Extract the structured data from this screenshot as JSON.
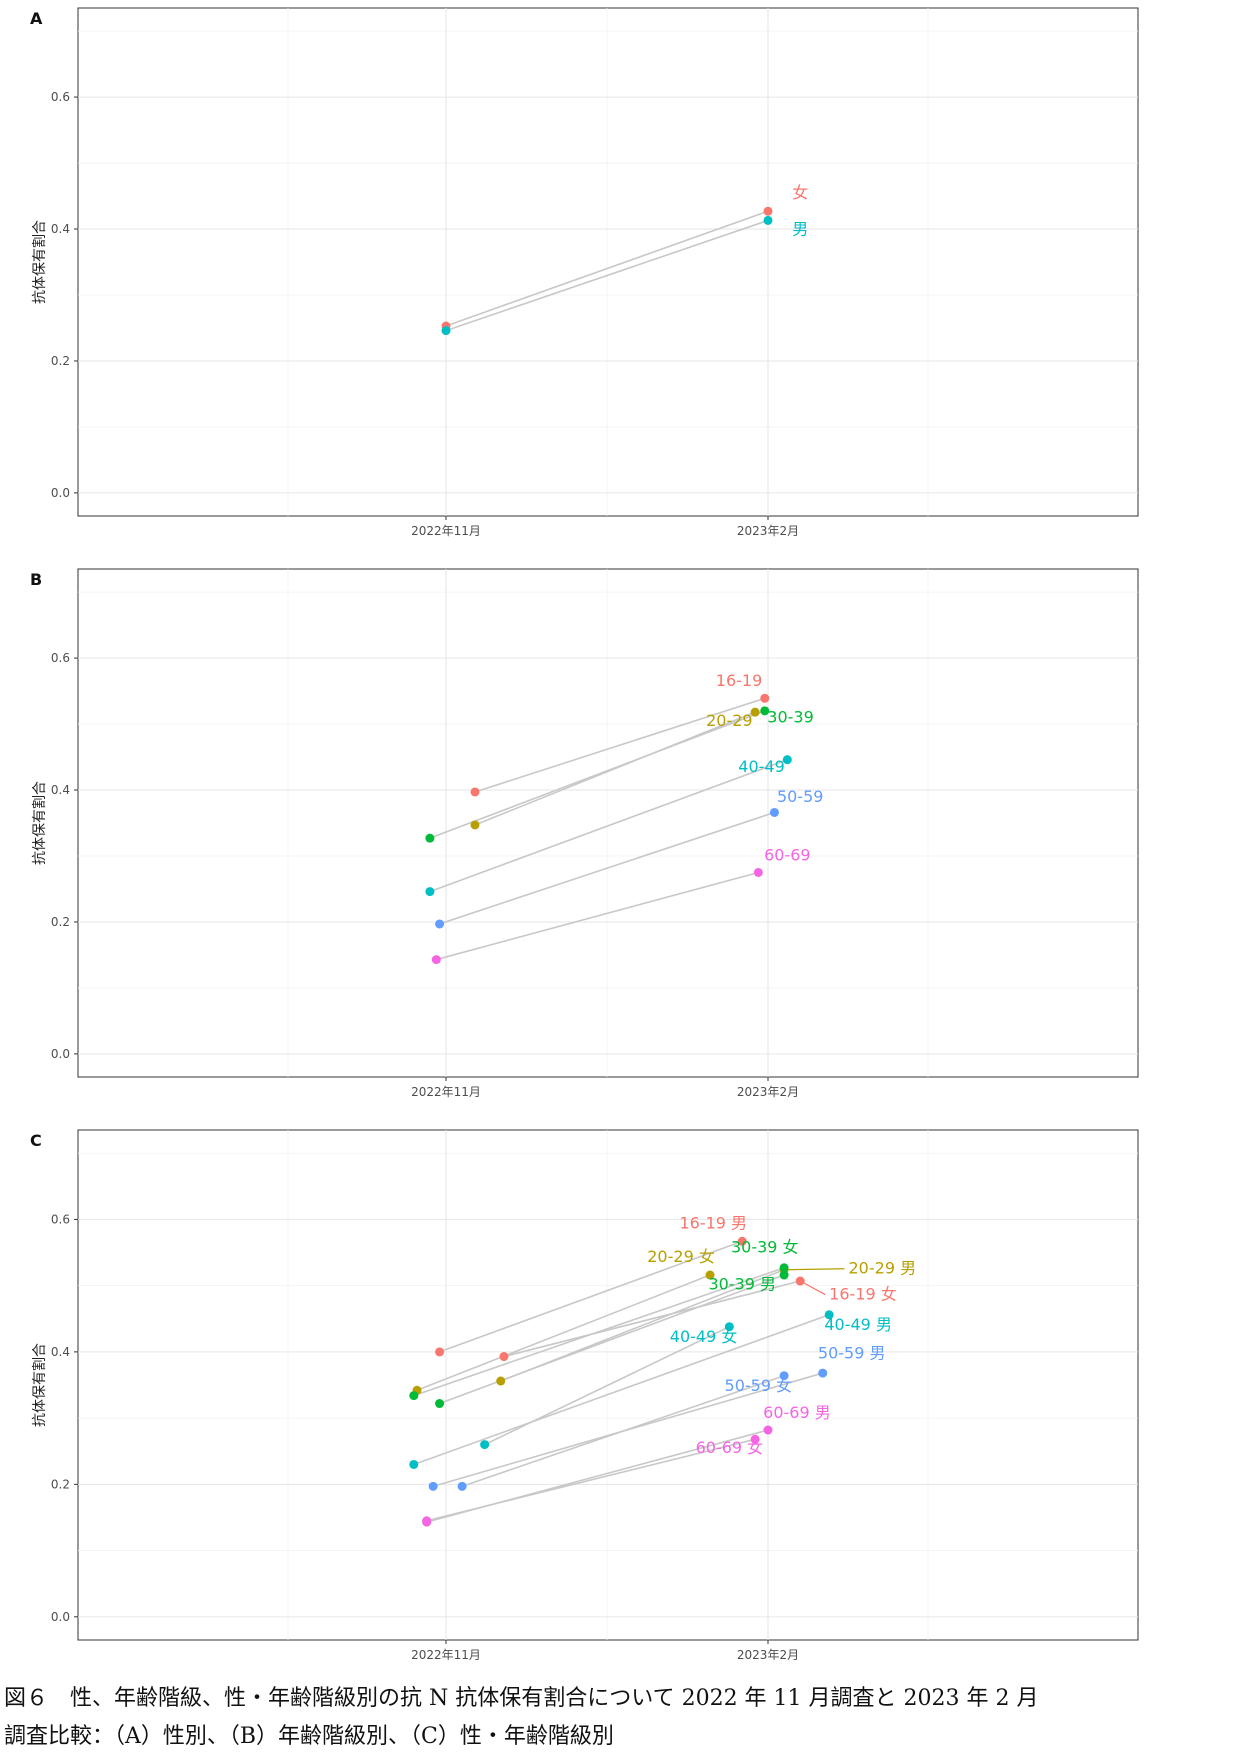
{
  "figure": {
    "caption_line1": "図６　性、年齢階級、性・年齢階級別の抗 N 抗体保有割合について 2022 年 11 月調査と 2023 年 2 月",
    "caption_line2": "調査比較：（A）性別、（B）年齢階級別、（C）性・年齢階級別"
  },
  "chart_data": [
    {
      "panel": "A",
      "type": "line",
      "title": "",
      "xlabel": "",
      "ylabel": "抗体保有割合",
      "x_categories": [
        "2022年11月",
        "2023年2月"
      ],
      "y_ticks": [
        "0.0",
        "0.2",
        "0.4",
        "0.6"
      ],
      "ylim": [
        -0.035,
        0.735
      ],
      "grid": true,
      "legend": "none (direct labels)",
      "series": [
        {
          "name": "女",
          "color": "#F8766D",
          "points": [
            [
              0,
              0.253
            ],
            [
              0,
              0.427
            ]
          ],
          "label_at": 1,
          "label_x": 0.1,
          "label_y": 0.447
        },
        {
          "name": "男",
          "color": "#00BFC4",
          "points": [
            [
              0,
              0.246
            ],
            [
              0,
              0.413
            ]
          ],
          "label_at": 1,
          "label_x": 0.1,
          "label_y": 0.392
        }
      ]
    },
    {
      "panel": "B",
      "type": "line",
      "title": "",
      "xlabel": "",
      "ylabel": "抗体保有割合",
      "x_categories": [
        "2022年11月",
        "2023年2月"
      ],
      "y_ticks": [
        "0.0",
        "0.2",
        "0.4",
        "0.6"
      ],
      "ylim": [
        -0.035,
        0.735
      ],
      "grid": true,
      "legend": "none (direct labels)",
      "series": [
        {
          "name": "16-19",
          "color": "#F8766D",
          "points": [
            [
              0.09,
              0.397
            ],
            [
              -0.01,
              0.539
            ]
          ],
          "label_x": -0.09,
          "label_y": 0.558
        },
        {
          "name": "20-29",
          "color": "#B79F00",
          "points": [
            [
              0.09,
              0.347
            ],
            [
              -0.04,
              0.518
            ]
          ],
          "label_x": -0.12,
          "label_y": 0.497
        },
        {
          "name": "30-39",
          "color": "#00BA38",
          "points": [
            [
              -0.05,
              0.327
            ],
            [
              -0.01,
              0.52
            ]
          ],
          "label_x": 0.07,
          "label_y": 0.502
        },
        {
          "name": "40-49",
          "color": "#00BFC4",
          "points": [
            [
              -0.05,
              0.246
            ],
            [
              0.06,
              0.446
            ]
          ],
          "label_x": -0.02,
          "label_y": 0.427
        },
        {
          "name": "50-59",
          "color": "#619CFF",
          "points": [
            [
              -0.02,
              0.197
            ],
            [
              0.02,
              0.366
            ]
          ],
          "label_x": 0.1,
          "label_y": 0.382
        },
        {
          "name": "60-69",
          "color": "#F564E3",
          "points": [
            [
              -0.03,
              0.143
            ],
            [
              -0.03,
              0.275
            ]
          ],
          "label_x": 0.06,
          "label_y": 0.293
        }
      ]
    },
    {
      "panel": "C",
      "type": "line",
      "title": "",
      "xlabel": "",
      "ylabel": "抗体保有割合",
      "x_categories": [
        "2022年11月",
        "2023年2月"
      ],
      "y_ticks": [
        "0.0",
        "0.2",
        "0.4",
        "0.6"
      ],
      "ylim": [
        -0.035,
        0.735
      ],
      "grid": true,
      "legend": "none (direct labels)",
      "series": [
        {
          "name": "16-19 男",
          "color": "#F8766D",
          "points": [
            [
              -0.02,
              0.4
            ],
            [
              -0.08,
              0.567
            ]
          ],
          "label_x": -0.17,
          "label_y": 0.586
        },
        {
          "name": "16-19 女",
          "color": "#F8766D",
          "points": [
            [
              0.18,
              0.393
            ],
            [
              0.1,
              0.507
            ]
          ],
          "label_x": 0.19,
          "label_y": 0.479,
          "leader": true
        },
        {
          "name": "20-29 女",
          "color": "#B79F00",
          "points": [
            [
              -0.09,
              0.342
            ],
            [
              -0.18,
              0.516
            ]
          ],
          "label_x": -0.27,
          "label_y": 0.536
        },
        {
          "name": "20-29 男",
          "color": "#B79F00",
          "points": [
            [
              0.17,
              0.356
            ],
            [
              0.05,
              0.524
            ]
          ],
          "label_x": 0.25,
          "label_y": 0.518,
          "leader": true
        },
        {
          "name": "30-39 女",
          "color": "#00BA38",
          "points": [
            [
              -0.1,
              0.334
            ],
            [
              0.05,
              0.527
            ]
          ],
          "label_x": -0.01,
          "label_y": 0.55
        },
        {
          "name": "30-39 男",
          "color": "#00BA38",
          "points": [
            [
              -0.02,
              0.322
            ],
            [
              0.05,
              0.516
            ]
          ],
          "label_x": -0.08,
          "label_y": 0.494
        },
        {
          "name": "40-49 女",
          "color": "#00BFC4",
          "points": [
            [
              0.12,
              0.26
            ],
            [
              -0.12,
              0.438
            ]
          ],
          "label_x": -0.2,
          "label_y": 0.415
        },
        {
          "name": "40-49 男",
          "color": "#00BFC4",
          "points": [
            [
              -0.1,
              0.23
            ],
            [
              0.19,
              0.456
            ]
          ],
          "label_x": 0.28,
          "label_y": 0.433
        },
        {
          "name": "50-59 女",
          "color": "#619CFF",
          "points": [
            [
              0.05,
              0.197
            ],
            [
              0.05,
              0.364
            ]
          ],
          "label_x": -0.03,
          "label_y": 0.341
        },
        {
          "name": "50-59 男",
          "color": "#619CFF",
          "points": [
            [
              -0.04,
              0.197
            ],
            [
              0.17,
              0.368
            ]
          ],
          "label_x": 0.26,
          "label_y": 0.39
        },
        {
          "name": "60-69 男",
          "color": "#F564E3",
          "points": [
            [
              -0.06,
              0.143
            ],
            [
              0.0,
              0.282
            ]
          ],
          "label_x": 0.09,
          "label_y": 0.3
        },
        {
          "name": "60-69 女",
          "color": "#F564E3",
          "points": [
            [
              -0.06,
              0.145
            ],
            [
              -0.04,
              0.268
            ]
          ],
          "label_x": -0.12,
          "label_y": 0.247
        }
      ]
    }
  ]
}
